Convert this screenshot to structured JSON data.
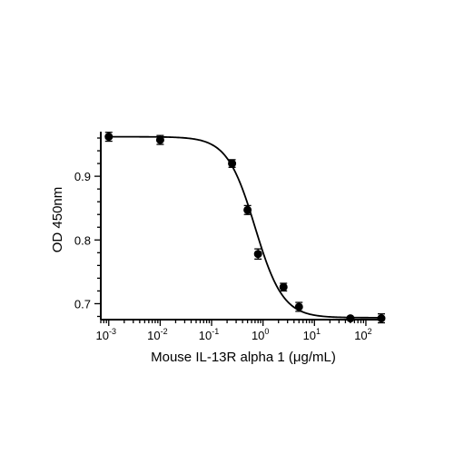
{
  "chart_data": {
    "type": "scatter",
    "xscale": "log",
    "xlabel": "Mouse IL-13R alpha 1 (μg/mL)",
    "ylabel": "OD 450nm",
    "xlim": [
      0.0007,
      200
    ],
    "ylim": [
      0.675,
      0.97
    ],
    "grid": false,
    "legend": "none",
    "x_ticks": [
      {
        "value": 0.001,
        "base": "10",
        "exp": "-3"
      },
      {
        "value": 0.01,
        "base": "10",
        "exp": "-2"
      },
      {
        "value": 0.1,
        "base": "10",
        "exp": "-1"
      },
      {
        "value": 1,
        "base": "10",
        "exp": "0"
      },
      {
        "value": 10,
        "base": "10",
        "exp": "1"
      },
      {
        "value": 100,
        "base": "10",
        "exp": "2"
      }
    ],
    "y_ticks": [
      0.7,
      0.8,
      0.9
    ],
    "y_tick_labels": [
      "0.7",
      "0.8",
      "0.9"
    ],
    "series": [
      {
        "marker_color": "#000000",
        "points": [
          {
            "x": 0.001,
            "y": 0.962,
            "err": 0.007
          },
          {
            "x": 0.01,
            "y": 0.957,
            "err": 0.007
          },
          {
            "x": 0.25,
            "y": 0.92,
            "err": 0.006
          },
          {
            "x": 0.5,
            "y": 0.847,
            "err": 0.007
          },
          {
            "x": 0.8,
            "y": 0.778,
            "err": 0.008
          },
          {
            "x": 2.5,
            "y": 0.726,
            "err": 0.006
          },
          {
            "x": 5,
            "y": 0.695,
            "err": 0.007
          },
          {
            "x": 50,
            "y": 0.677,
            "err": 0.002
          },
          {
            "x": 200,
            "y": 0.677,
            "err": 0.007
          }
        ]
      }
    ],
    "fit_curve": {
      "top": 0.962,
      "bottom": 0.678,
      "ec50": 0.7,
      "hill": 1.6
    }
  }
}
